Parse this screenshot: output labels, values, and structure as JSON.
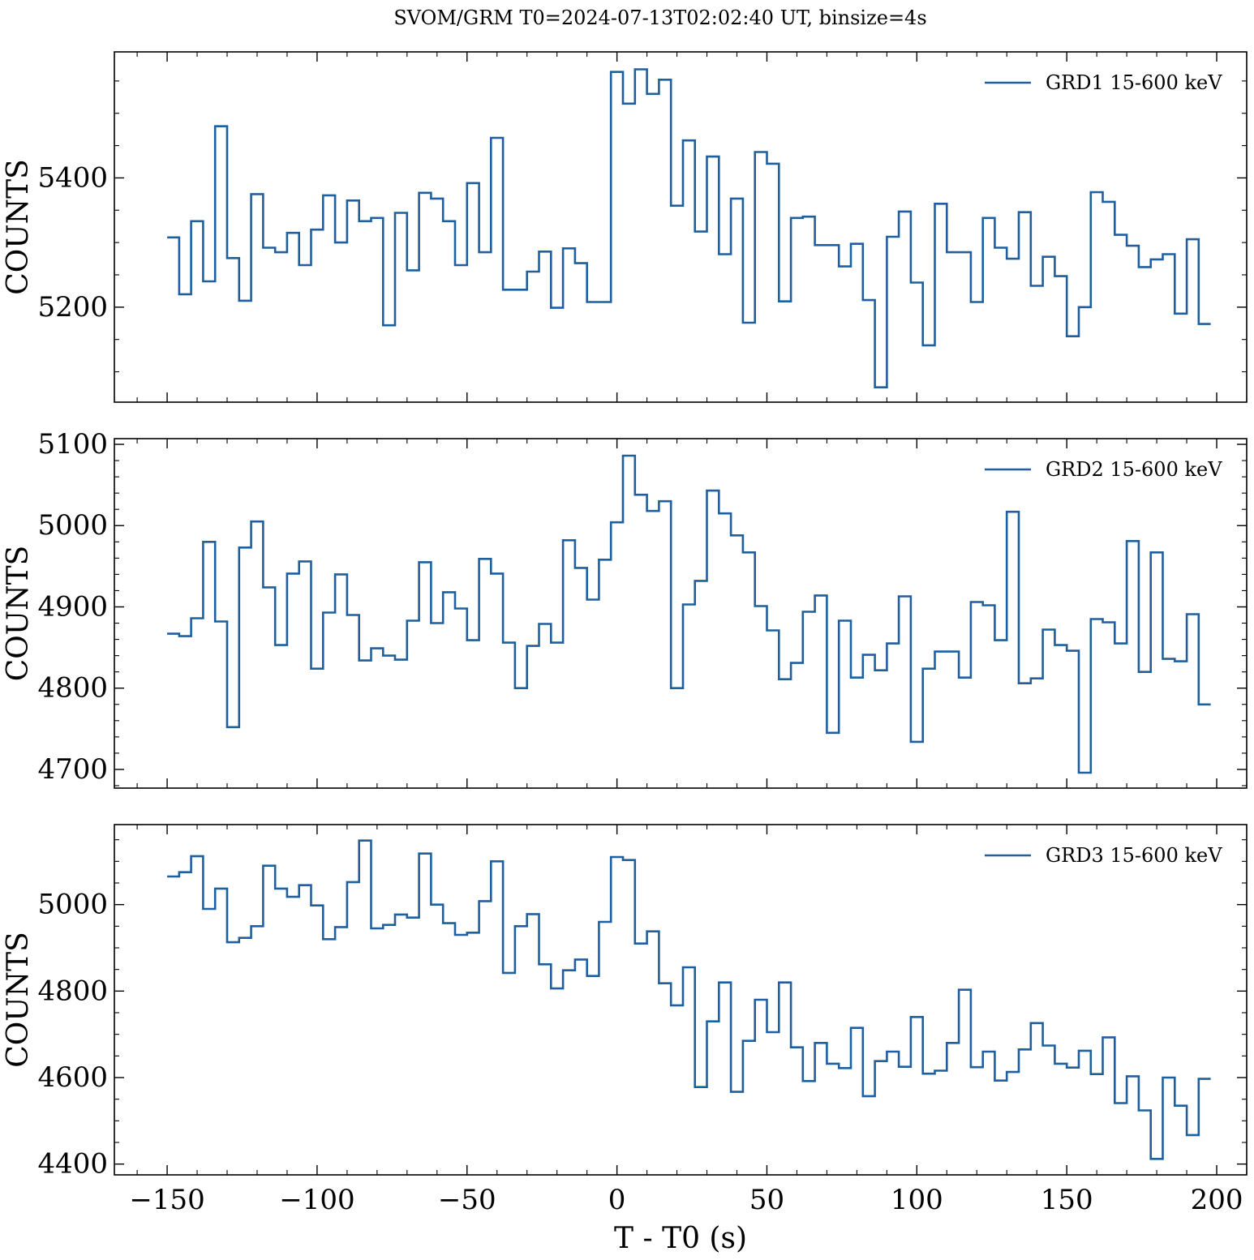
{
  "figure": {
    "title": "SVOM/GRM T0=2024-07-13T02:02:40 UT, binsize=4s",
    "line_color": "#1f5f9e"
  },
  "chart_data": [
    {
      "type": "line",
      "step": "post",
      "legend": "GRD1 15-600 keV",
      "legend_position": "top-right",
      "ylabel": "COUNTS",
      "xlabel": "",
      "xlim": [
        -167.6,
        210
      ],
      "ylim": [
        5053,
        5595
      ],
      "xticks": [
        -150,
        -100,
        -50,
        0,
        50,
        100,
        150,
        200
      ],
      "xtick_labels": [
        "",
        "",
        "",
        "",
        "",
        "",
        "",
        ""
      ],
      "yticks": [
        5200,
        5400
      ],
      "ytick_labels": [
        "5200",
        "5400"
      ],
      "ytick_minor_step": 50,
      "x_start": -150,
      "bin": 4,
      "values": [
        5308,
        5220,
        5333,
        5240,
        5480,
        5276,
        5210,
        5375,
        5292,
        5285,
        5315,
        5265,
        5320,
        5373,
        5300,
        5365,
        5333,
        5338,
        5172,
        5346,
        5257,
        5377,
        5368,
        5333,
        5265,
        5392,
        5285,
        5462,
        5227,
        5227,
        5255,
        5286,
        5199,
        5291,
        5268,
        5208,
        5208,
        5564,
        5515,
        5568,
        5530,
        5552,
        5357,
        5458,
        5317,
        5433,
        5282,
        5368,
        5176,
        5440,
        5422,
        5209,
        5338,
        5340,
        5296,
        5296,
        5263,
        5298,
        5211,
        5076,
        5309,
        5348,
        5238,
        5141,
        5360,
        5285,
        5285,
        5208,
        5338,
        5292,
        5275,
        5347,
        5233,
        5278,
        5248,
        5155,
        5200,
        5378,
        5363,
        5312,
        5295,
        5262,
        5274,
        5282,
        5190,
        5305,
        5174
      ]
    },
    {
      "type": "line",
      "step": "post",
      "legend": "GRD2 15-600 keV",
      "legend_position": "top-right",
      "ylabel": "COUNTS",
      "xlabel": "",
      "xlim": [
        -167.6,
        210
      ],
      "ylim": [
        4677,
        5107
      ],
      "xticks": [
        -150,
        -100,
        -50,
        0,
        50,
        100,
        150,
        200
      ],
      "xtick_labels": [
        "",
        "",
        "",
        "",
        "",
        "",
        "",
        ""
      ],
      "yticks": [
        4700,
        4800,
        4900,
        5000,
        5100
      ],
      "ytick_labels": [
        "4700",
        "4800",
        "4900",
        "5000",
        "5100"
      ],
      "ytick_minor_step": 20,
      "x_start": -150,
      "bin": 4,
      "values": [
        4867,
        4864,
        4886,
        4980,
        4882,
        4752,
        4973,
        5005,
        4924,
        4853,
        4941,
        4956,
        4824,
        4893,
        4940,
        4890,
        4834,
        4849,
        4840,
        4835,
        4883,
        4955,
        4880,
        4918,
        4898,
        4859,
        4959,
        4941,
        4856,
        4800,
        4852,
        4879,
        4856,
        4982,
        4948,
        4909,
        4958,
        5004,
        5086,
        5038,
        5018,
        5030,
        4800,
        4903,
        4932,
        5043,
        5015,
        4988,
        4967,
        4901,
        4871,
        4811,
        4831,
        4894,
        4914,
        4745,
        4883,
        4813,
        4841,
        4822,
        4855,
        4913,
        4734,
        4824,
        4845,
        4845,
        4813,
        4906,
        4902,
        4859,
        5017,
        4806,
        4812,
        4872,
        4853,
        4846,
        4696,
        4885,
        4881,
        4855,
        4981,
        4820,
        4967,
        4836,
        4833,
        4891,
        4780
      ]
    },
    {
      "type": "line",
      "step": "post",
      "legend": "GRD3 15-600 keV",
      "legend_position": "top-right",
      "ylabel": "COUNTS",
      "xlabel": "T - T0 (s)",
      "xlim": [
        -167.6,
        210
      ],
      "ylim": [
        4375,
        5185
      ],
      "xticks": [
        -150,
        -100,
        -50,
        0,
        50,
        100,
        150,
        200
      ],
      "xtick_labels": [
        "−150",
        "−100",
        "−50",
        "0",
        "50",
        "100",
        "150",
        "200"
      ],
      "yticks": [
        4400,
        4600,
        4800,
        5000
      ],
      "ytick_labels": [
        "4400",
        "4600",
        "4800",
        "5000"
      ],
      "ytick_minor_step": 50,
      "x_start": -150,
      "bin": 4,
      "values": [
        5065,
        5075,
        5112,
        4990,
        5037,
        4913,
        4923,
        4950,
        5090,
        5037,
        5018,
        5045,
        4998,
        4920,
        4948,
        5052,
        5148,
        4945,
        4953,
        4977,
        4970,
        5118,
        5000,
        4957,
        4930,
        4935,
        5008,
        5100,
        4842,
        4950,
        4978,
        4862,
        4806,
        4848,
        4873,
        4835,
        4960,
        5110,
        5103,
        4910,
        4938,
        4818,
        4767,
        4855,
        4578,
        4730,
        4820,
        4567,
        4685,
        4780,
        4705,
        4820,
        4670,
        4592,
        4680,
        4632,
        4622,
        4715,
        4557,
        4638,
        4660,
        4625,
        4740,
        4609,
        4616,
        4680,
        4803,
        4624,
        4660,
        4593,
        4613,
        4665,
        4726,
        4674,
        4632,
        4623,
        4662,
        4608,
        4693,
        4541,
        4603,
        4524,
        4412,
        4600,
        4535,
        4467,
        4597
      ]
    }
  ]
}
